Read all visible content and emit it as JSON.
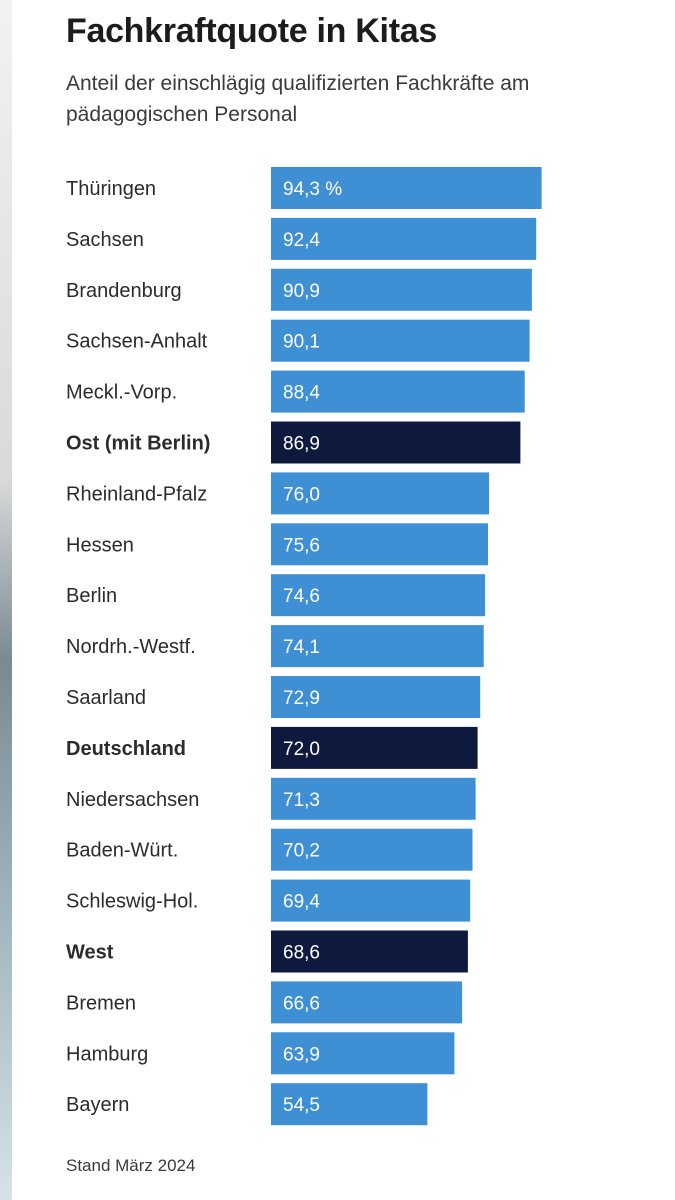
{
  "header": {
    "title": "Fachkraftquote in Kitas",
    "subtitle": "Anteil der einschlägig qualifizierten Fachkräfte am pädagogischen Personal"
  },
  "footnote": "Stand März 2024",
  "colors": {
    "bar": "#3f8fd4",
    "bar_highlight": "#0e1a3d",
    "bar_text": "#ffffff",
    "label": "#2b2b2b"
  },
  "chart_data": {
    "type": "bar",
    "orientation": "horizontal",
    "title": "Fachkraftquote in Kitas",
    "subtitle": "Anteil der einschlägig qualifizierten Fachkräfte am pädagogischen Personal",
    "unit": "%",
    "xlim": [
      0,
      100
    ],
    "grid": false,
    "categories": [
      "Thüringen",
      "Sachsen",
      "Brandenburg",
      "Sachsen-Anhalt",
      "Meckl.-Vorp.",
      "Ost (mit Berlin)",
      "Rheinland-Pfalz",
      "Hessen",
      "Berlin",
      "Nordrh.-Westf.",
      "Saarland",
      "Deutschland",
      "Niedersachsen",
      "Baden-Würt.",
      "Schleswig-Hol.",
      "West",
      "Bremen",
      "Hamburg",
      "Bayern"
    ],
    "values": [
      94.3,
      92.4,
      90.9,
      90.1,
      88.4,
      86.9,
      76.0,
      75.6,
      74.6,
      74.1,
      72.9,
      72.0,
      71.3,
      70.2,
      69.4,
      68.6,
      66.6,
      63.9,
      54.5
    ],
    "value_labels": [
      "94,3 %",
      "92,4",
      "90,9",
      "90,1",
      "88,4",
      "86,9",
      "76,0",
      "75,6",
      "74,6",
      "74,1",
      "72,9",
      "72,0",
      "71,3",
      "70,2",
      "69,4",
      "68,6",
      "66,6",
      "63,9",
      "54,5"
    ],
    "highlighted": [
      "Ost (mit Berlin)",
      "Deutschland",
      "West"
    ]
  }
}
